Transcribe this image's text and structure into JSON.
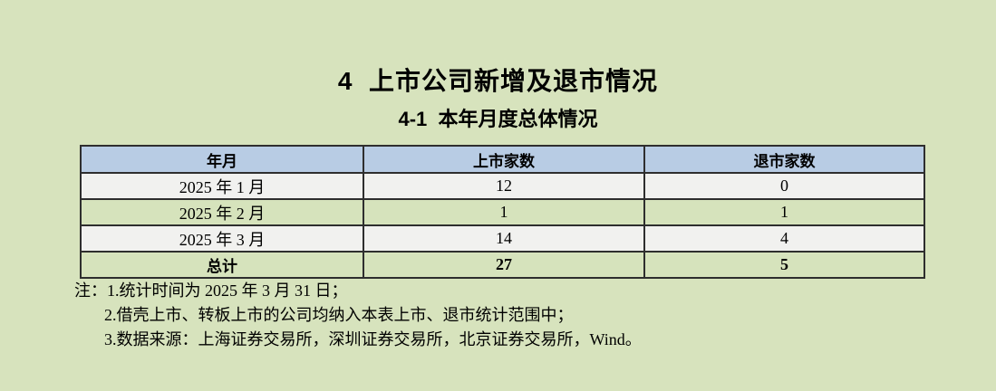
{
  "page": {
    "title": "4  上市公司新增及退市情况",
    "subtitle": "4-1  本年月度总体情况"
  },
  "table": {
    "headers": [
      "年月",
      "上市家数",
      "退市家数"
    ],
    "rows": [
      {
        "month": "2025 年 1 月",
        "listed": "12",
        "delisted": "0"
      },
      {
        "month": "2025 年 2 月",
        "listed": "1",
        "delisted": "1"
      },
      {
        "month": "2025 年 3 月",
        "listed": "14",
        "delisted": "4"
      }
    ],
    "total": {
      "label": "总计",
      "listed": "27",
      "delisted": "5"
    }
  },
  "notes": {
    "label": "注：",
    "items": [
      "1.统计时间为 2025 年 3 月 31 日；",
      "2.借壳上市、转板上市的公司均纳入本表上市、退市统计范围中；",
      "3.数据来源：上海证券交易所，深圳证券交易所，北京证券交易所，Wind。"
    ]
  },
  "colors": {
    "page_background": "#d7e3bd",
    "table_header_background": "#b8cce4",
    "row_light_background": "#f1f1ef",
    "row_green_background": "#d6e3bc",
    "border": "#2e2e2e",
    "text": "#000000"
  }
}
